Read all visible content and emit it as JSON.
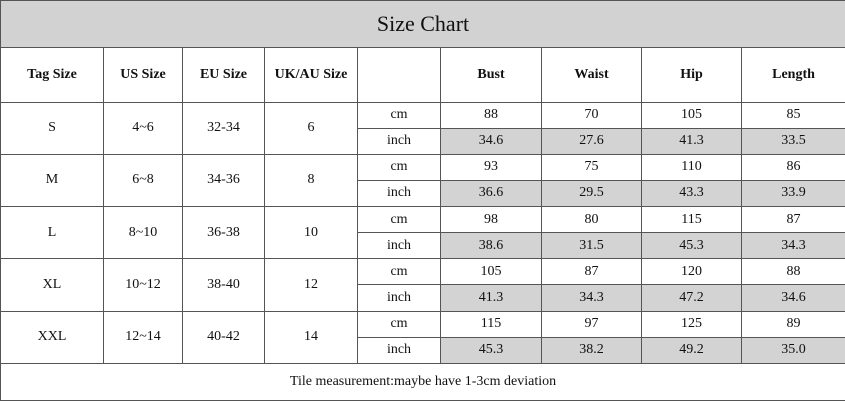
{
  "title": "Size Chart",
  "header": {
    "columns": [
      "Tag Size",
      "US Size",
      "EU Size",
      "UK/AU Size"
    ],
    "measures": [
      "Bust",
      "Waist",
      "Hip",
      "Length"
    ]
  },
  "units": [
    "cm",
    "inch"
  ],
  "sizes": [
    {
      "tag": "S",
      "us": "4~6",
      "eu": "32-34",
      "ukau": "6",
      "cm": [
        "88",
        "70",
        "105",
        "85"
      ],
      "inch": [
        "34.6",
        "27.6",
        "41.3",
        "33.5"
      ]
    },
    {
      "tag": "M",
      "us": "6~8",
      "eu": "34-36",
      "ukau": "8",
      "cm": [
        "93",
        "75",
        "110",
        "86"
      ],
      "inch": [
        "36.6",
        "29.5",
        "43.3",
        "33.9"
      ]
    },
    {
      "tag": "L",
      "us": "8~10",
      "eu": "36-38",
      "ukau": "10",
      "cm": [
        "98",
        "80",
        "115",
        "87"
      ],
      "inch": [
        "38.6",
        "31.5",
        "45.3",
        "34.3"
      ]
    },
    {
      "tag": "XL",
      "us": "10~12",
      "eu": "38-40",
      "ukau": "12",
      "cm": [
        "105",
        "87",
        "120",
        "88"
      ],
      "inch": [
        "41.3",
        "34.3",
        "47.2",
        "34.6"
      ]
    },
    {
      "tag": "XXL",
      "us": "12~14",
      "eu": "40-42",
      "ukau": "14",
      "cm": [
        "115",
        "97",
        "125",
        "89"
      ],
      "inch": [
        "45.3",
        "38.2",
        "49.2",
        "35.0"
      ]
    }
  ],
  "footer": "Tile measurement:maybe have 1-3cm deviation"
}
